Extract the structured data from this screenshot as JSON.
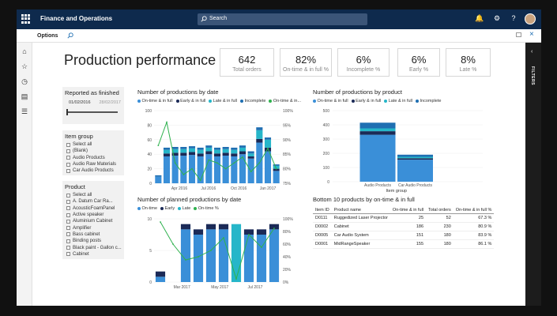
{
  "app": {
    "name": "Finance and Operations",
    "search_placeholder": "Search",
    "options_label": "Options",
    "filters_label": "FILTERS"
  },
  "page": {
    "title": "Production performance"
  },
  "kpis": [
    {
      "value": "642",
      "label": "Total orders"
    },
    {
      "value": "82%",
      "label": "On-time & in full %"
    },
    {
      "value": "6%",
      "label": "Incomplete %"
    },
    {
      "value": "6%",
      "label": "Early %"
    },
    {
      "value": "8%",
      "label": "Late %"
    }
  ],
  "filters": {
    "reported": {
      "title": "Reported as finished",
      "from": "01/02/2016",
      "to": "28/02/2017"
    },
    "item_group": {
      "title": "Item group",
      "items": [
        "Select all",
        "(Blank)",
        "Audio Products",
        "Audio Raw Materials",
        "Car Audio Products"
      ]
    },
    "product": {
      "title": "Product",
      "items": [
        "Select all",
        "A. Datum Car Ra...",
        "AcousticFoamPanel",
        "Active speaker",
        "Aluminium Cabinet",
        "Amplifier",
        "Bass cabinet",
        "Binding posts",
        "Black paint - Gallon c...",
        "Cabinet"
      ]
    }
  },
  "colors": {
    "ontime": "#3a8fd8",
    "early": "#1b2a57",
    "late": "#26b6c9",
    "incomplete": "#1f6fb2",
    "line": "#2fb24f"
  },
  "charts": {
    "by_date": {
      "title": "Number of productions by date",
      "legend": [
        "On-time & in full",
        "Early & in full",
        "Late & in full",
        "Incomplete",
        "On-time & in..."
      ]
    },
    "by_product": {
      "title": "Number of productions by product",
      "legend": [
        "On-time & in full",
        "Early & in full",
        "Late & in full",
        "Incomplete"
      ]
    },
    "planned": {
      "title": "Number of planned productions by date",
      "legend": [
        "On-time",
        "Early",
        "Late",
        "On-time %"
      ]
    },
    "bottom10": {
      "title": "Bottom 10 products by on-time & in full",
      "columns": [
        "Item ID",
        "Product name",
        "On-time & in full",
        "Total orders",
        "On-time & in full %"
      ],
      "rows": [
        [
          "D0111",
          "Ruggedized Laser Projector",
          "25",
          "52",
          "67.3 %"
        ],
        [
          "D0002",
          "Cabinet",
          "186",
          "230",
          "80.9 %"
        ],
        [
          "D0005",
          "Car Audio System",
          "151",
          "180",
          "83.9 %"
        ],
        [
          "D0001",
          "MidRangeSpeaker",
          "155",
          "180",
          "86.1 %"
        ]
      ]
    }
  },
  "chart_data": [
    {
      "type": "bar",
      "title": "Number of productions by date",
      "y_ticks": [
        "0",
        "20",
        "40",
        "60",
        "80",
        "100"
      ],
      "y2_ticks": [
        "75%",
        "80%",
        "85%",
        "90%",
        "95%",
        "100%"
      ],
      "x_ticks": [
        "Apr 2016",
        "Jul 2016",
        "Oct 2016",
        "Jan 2017"
      ],
      "ylim": [
        0,
        100
      ],
      "y2lim": [
        75,
        100
      ],
      "series": [
        {
          "name": "On-time & in full",
          "values": [
            9,
            37,
            38,
            38,
            39,
            37,
            40,
            37,
            38,
            37,
            40,
            34,
            56,
            44,
            17
          ]
        },
        {
          "name": "Early & in full",
          "values": [
            0,
            4,
            4,
            4,
            4,
            4,
            4,
            4,
            4,
            4,
            4,
            3,
            5,
            5,
            3
          ]
        },
        {
          "name": "Late & in full",
          "values": [
            0,
            5,
            5,
            5,
            5,
            5,
            5,
            5,
            5,
            5,
            5,
            4,
            12,
            11,
            4
          ]
        },
        {
          "name": "Incomplete",
          "values": [
            2,
            3,
            3,
            3,
            3,
            3,
            3,
            3,
            3,
            3,
            3,
            3,
            4,
            3,
            2
          ]
        },
        {
          "name": "On-time & in...",
          "values": [
            88,
            96,
            82,
            78,
            80,
            76,
            83,
            82,
            80,
            82,
            84,
            79,
            82,
            87,
            80
          ]
        }
      ]
    },
    {
      "type": "bar",
      "title": "Number of productions by product",
      "categories": [
        "Audio Products",
        "Car Audio Products"
      ],
      "xlabel": "Item group",
      "y_ticks": [
        "0",
        "100",
        "200",
        "300",
        "400",
        "500"
      ],
      "ylim": [
        0,
        500
      ],
      "series": [
        {
          "name": "On-time & in full",
          "values": [
            330,
            155
          ]
        },
        {
          "name": "Early & in full",
          "values": [
            25,
            10
          ]
        },
        {
          "name": "Late & in full",
          "values": [
            20,
            10
          ]
        },
        {
          "name": "Incomplete",
          "values": [
            40,
            15
          ]
        }
      ]
    },
    {
      "type": "bar",
      "title": "Number of planned productions by date",
      "y_ticks": [
        "0",
        "5",
        "10"
      ],
      "y2_ticks": [
        "0%",
        "20%",
        "40%",
        "60%",
        "80%",
        "100%"
      ],
      "x_ticks": [
        "Mar 2017",
        "May 2017",
        "Jul 2017"
      ],
      "ylim": [
        0,
        12
      ],
      "y2lim": [
        0,
        100
      ],
      "series": [
        {
          "name": "On-time",
          "values": [
            1,
            0,
            10,
            9,
            10,
            10,
            0,
            9,
            9,
            10
          ]
        },
        {
          "name": "Early",
          "values": [
            1,
            0,
            1,
            1,
            1,
            1,
            0,
            1,
            1,
            1
          ]
        },
        {
          "name": "Late",
          "values": [
            0,
            0,
            0,
            0,
            0,
            0,
            11,
            0,
            0,
            0
          ]
        },
        {
          "name": "On-time %",
          "values": [
            95,
            60,
            35,
            40,
            50,
            70,
            5,
            75,
            55,
            85
          ]
        }
      ]
    }
  ]
}
